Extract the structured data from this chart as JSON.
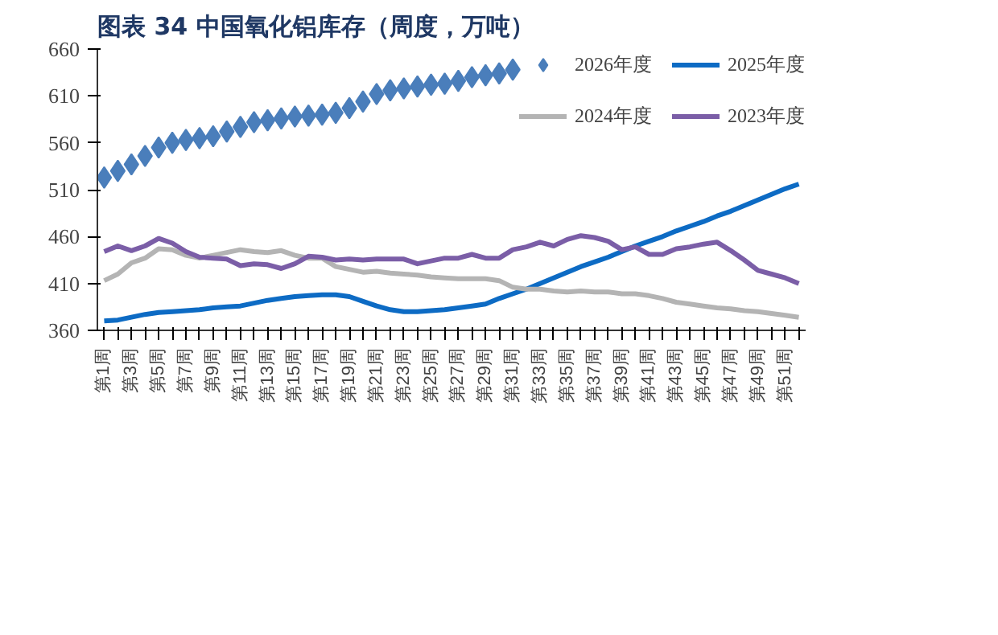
{
  "chart_data": {
    "type": "line",
    "title": "图表 34   中国氧化铝库存（周度，万吨）",
    "categories": [
      "第1周",
      null,
      "第3周",
      null,
      "第5周",
      null,
      "第7周",
      null,
      "第9周",
      null,
      "第11周",
      null,
      "第13周",
      null,
      "第15周",
      null,
      "第17周",
      null,
      "第19周",
      null,
      "第21周",
      null,
      "第23周",
      null,
      "第25周",
      null,
      "第27周",
      null,
      "第29周",
      null,
      "第31周",
      null,
      "第33周",
      null,
      "第35周",
      null,
      "第37周",
      null,
      "第39周",
      null,
      "第41周",
      null,
      "第43周",
      null,
      "第45周",
      null,
      "第47周",
      null,
      "第49周",
      null,
      "第51周",
      null
    ],
    "series": [
      {
        "name": "2026年度",
        "type": "scatter",
        "color": "#4a7ebb",
        "marker": "diamond",
        "values": [
          523,
          530,
          537,
          546,
          555,
          560,
          563,
          565,
          567,
          572,
          577,
          582,
          584,
          586,
          588,
          589,
          590,
          592,
          597,
          604,
          612,
          616,
          618,
          620,
          622,
          623,
          626,
          630,
          632,
          634,
          638,
          null,
          null,
          null,
          null,
          null,
          null,
          null,
          null,
          null,
          null,
          null,
          null,
          null,
          null,
          null,
          null,
          null,
          null,
          null,
          null,
          null
        ]
      },
      {
        "name": "2025年度",
        "color": "#0d6bc4",
        "values": [
          370,
          371,
          374,
          377,
          379,
          380,
          381,
          382,
          384,
          385,
          386,
          389,
          392,
          394,
          396,
          397,
          398,
          398,
          396,
          391,
          386,
          382,
          380,
          380,
          381,
          382,
          384,
          386,
          388,
          394,
          399,
          404,
          410,
          416,
          422,
          428,
          433,
          438,
          444,
          450,
          455,
          460,
          466,
          471,
          476,
          482,
          487,
          493,
          499,
          505,
          511,
          516
        ]
      },
      {
        "name": "2024年度",
        "color": "#b4b4b4",
        "values": [
          413,
          420,
          432,
          437,
          447,
          446,
          440,
          437,
          440,
          443,
          446,
          444,
          443,
          445,
          440,
          437,
          437,
          428,
          425,
          422,
          423,
          421,
          420,
          419,
          417,
          416,
          415,
          415,
          415,
          413,
          406,
          404,
          404,
          402,
          401,
          402,
          401,
          401,
          399,
          399,
          397,
          394,
          390,
          388,
          386,
          384,
          383,
          381,
          380,
          378,
          376,
          374
        ]
      },
      {
        "name": "2023年度",
        "color": "#7b5ea7",
        "values": [
          444,
          450,
          445,
          450,
          458,
          453,
          444,
          438,
          437,
          436,
          429,
          431,
          430,
          426,
          431,
          439,
          438,
          435,
          436,
          435,
          436,
          436,
          436,
          431,
          434,
          437,
          437,
          441,
          437,
          437,
          446,
          449,
          454,
          450,
          457,
          461,
          459,
          455,
          446,
          449,
          441,
          441,
          447,
          449,
          452,
          454,
          445,
          435,
          424,
          420,
          416,
          410
        ]
      }
    ],
    "ylim": [
      360,
      660
    ],
    "yticks": [
      360,
      410,
      460,
      510,
      560,
      610,
      660
    ],
    "grid": false,
    "legend": "top right"
  }
}
